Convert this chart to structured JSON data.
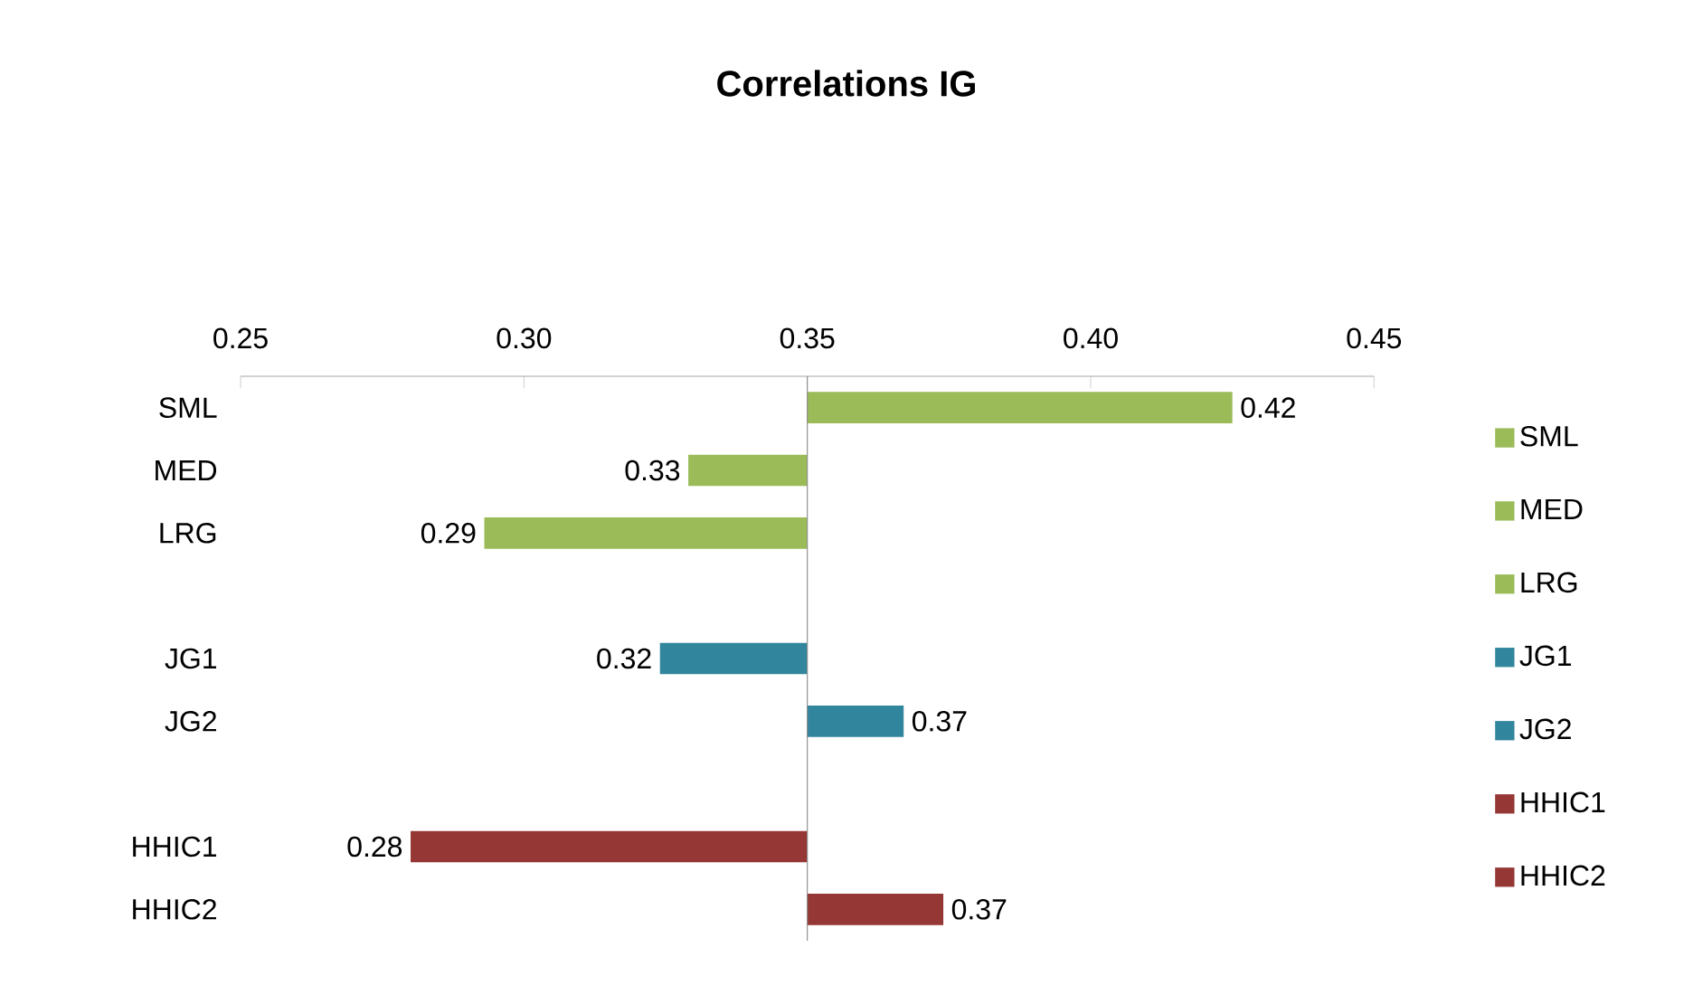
{
  "chart_data": {
    "type": "bar",
    "orientation": "horizontal",
    "title": "Correlations IG",
    "categories": [
      "SML",
      "MED",
      "LRG",
      null,
      "JG1",
      "JG2",
      null,
      "HHIC1",
      "HHIC2"
    ],
    "series": [
      {
        "name": "SML",
        "color": "#9bbb59",
        "base": [
          0.35,
          null,
          null,
          null,
          null,
          null,
          null,
          null,
          null
        ],
        "values": [
          0.075,
          null,
          null,
          null,
          null,
          null,
          null,
          null,
          null
        ],
        "value_labels": [
          "0.42",
          null,
          null,
          null,
          null,
          null,
          null,
          null,
          null
        ]
      },
      {
        "name": "MED",
        "color": "#9bbb59",
        "base": [
          null,
          0.35,
          null,
          null,
          null,
          null,
          null,
          null,
          null
        ],
        "values": [
          null,
          -0.021,
          null,
          null,
          null,
          null,
          null,
          null,
          null
        ],
        "value_labels": [
          null,
          "0.33",
          null,
          null,
          null,
          null,
          null,
          null,
          null
        ]
      },
      {
        "name": "LRG",
        "color": "#9bbb59",
        "base": [
          null,
          null,
          0.35,
          null,
          null,
          null,
          null,
          null,
          null
        ],
        "values": [
          null,
          null,
          -0.057,
          null,
          null,
          null,
          null,
          null,
          null
        ],
        "value_labels": [
          null,
          null,
          "0.29",
          null,
          null,
          null,
          null,
          null,
          null
        ]
      },
      {
        "name": "JG1",
        "color": "#31859c",
        "base": [
          null,
          null,
          null,
          null,
          0.35,
          null,
          null,
          null,
          null
        ],
        "values": [
          null,
          null,
          null,
          null,
          -0.026,
          null,
          null,
          null,
          null
        ],
        "value_labels": [
          null,
          null,
          null,
          null,
          "0.32",
          null,
          null,
          null,
          null
        ]
      },
      {
        "name": "JG2",
        "color": "#31859c",
        "base": [
          null,
          null,
          null,
          null,
          null,
          0.35,
          null,
          null,
          null
        ],
        "values": [
          null,
          null,
          null,
          null,
          null,
          0.017,
          null,
          null,
          null
        ],
        "value_labels": [
          null,
          null,
          null,
          null,
          null,
          "0.37",
          null,
          null,
          null
        ]
      },
      {
        "name": "HHIC1",
        "color": "#953735",
        "base": [
          null,
          null,
          null,
          null,
          null,
          null,
          null,
          0.35,
          null
        ],
        "values": [
          null,
          null,
          null,
          null,
          null,
          null,
          null,
          -0.07,
          null
        ],
        "value_labels": [
          null,
          null,
          null,
          null,
          null,
          null,
          null,
          "0.28",
          null
        ]
      },
      {
        "name": "HHIC2",
        "color": "#953735",
        "base": [
          null,
          null,
          null,
          null,
          null,
          null,
          null,
          null,
          0.35
        ],
        "values": [
          null,
          null,
          null,
          null,
          null,
          null,
          null,
          null,
          0.024
        ],
        "value_labels": [
          null,
          null,
          null,
          null,
          null,
          null,
          null,
          null,
          "0.37"
        ]
      }
    ],
    "ref_lines": [
      {
        "axis": "x",
        "value": 0.35,
        "color": "#868686"
      }
    ],
    "xlim": [
      0.25,
      0.45
    ],
    "xticks": [
      {
        "value": 0.25,
        "label": "0.25"
      },
      {
        "value": 0.3,
        "label": "0.30"
      },
      {
        "value": 0.35,
        "label": "0.35"
      },
      {
        "value": 0.4,
        "label": "0.40"
      },
      {
        "value": 0.45,
        "label": "0.45"
      }
    ],
    "grid": false,
    "legend": "right"
  }
}
